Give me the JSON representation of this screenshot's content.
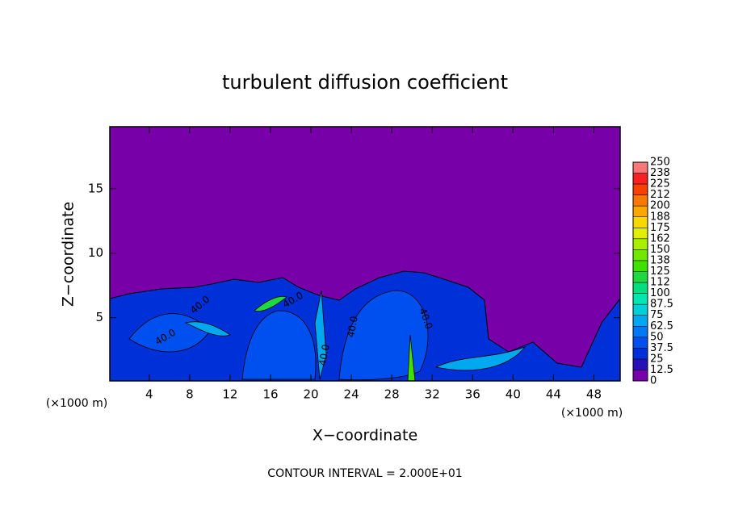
{
  "chart_data": {
    "type": "contour",
    "title": "turbulent diffusion coefficient",
    "x_label": "X−coordinate",
    "y_label": "Z−coordinate",
    "x_unit": "(×1000 m)",
    "y_unit": "(×1000 m)",
    "footer": "CONTOUR INTERVAL = 2.000E+01",
    "contour_labels": [
      "40.0",
      "40.0",
      "40.0",
      "40.0",
      "40.0",
      "40.0"
    ],
    "xlim": [
      0.1,
      50.6
    ],
    "xticks": [
      4,
      8,
      12,
      16,
      20,
      24,
      28,
      32,
      36,
      40,
      44,
      48
    ],
    "ylim": [
      0.1,
      19.8
    ],
    "yticks": [
      5,
      10,
      15
    ],
    "colorbar": {
      "levels": [
        0,
        12.5,
        25,
        37.5,
        50,
        62.5,
        75,
        87.5,
        100,
        {
          "value": 112.5,
          "label": "112"
        },
        125,
        {
          "value": 137.5,
          "label": "138"
        },
        150,
        {
          "value": 162.5,
          "label": "162"
        },
        175,
        {
          "value": 187.5,
          "label": "188"
        },
        200,
        {
          "value": 212.5,
          "label": "212"
        },
        225,
        {
          "value": 237.5,
          "label": "238"
        },
        250
      ],
      "colors": [
        "#7800a8",
        "#2810b8",
        "#0030d8",
        "#0050f0",
        "#0078f8",
        "#00a8f0",
        "#00d0d8",
        "#00e8b0",
        "#00e080",
        "#20d840",
        "#40e000",
        "#70e800",
        "#a8f000",
        "#e0f000",
        "#f8d800",
        "#f8a800",
        "#f87800",
        "#f84000",
        "#f82020",
        "#f87878"
      ]
    }
  }
}
